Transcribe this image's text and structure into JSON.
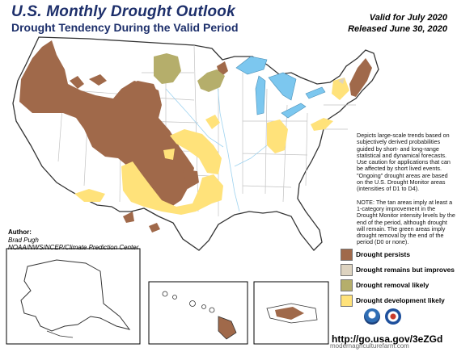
{
  "header": {
    "title": "U.S. Monthly Drought Outlook",
    "subtitle": "Drought Tendency During the Valid Period",
    "valid_line": "Valid for July 2020",
    "released_line": "Released June 30, 2020"
  },
  "notes": {
    "paragraph1": "Depicts large-scale trends based on subjectively derived probabilities guided by short- and long-range statistical and dynamical forecasts. Use caution for applications that can be affected by short lived events. \"Ongoing\" drought areas are based on the U.S. Drought Monitor areas (intensities of D1 to D4).",
    "paragraph2": "NOTE: The tan areas imply at least a 1-category improvement in the Drought Monitor intensity levels by the end of the period, although drought will remain. The green areas imply drought removal by the end of the period (D0 or none)."
  },
  "author": {
    "label": "Author:",
    "name": "Brad Pugh",
    "org": "NOAA/NWS/NCEP/Climate Prediction Center"
  },
  "legend": {
    "items": [
      {
        "label": "Drought persists",
        "color": "#a0694a"
      },
      {
        "label": "Drought remains but improves",
        "color": "#ddd3c0"
      },
      {
        "label": "Drought removal likely",
        "color": "#b5ae6b"
      },
      {
        "label": "Drought development likely",
        "color": "#ffe27a"
      }
    ]
  },
  "footer": {
    "url": "http://go.usa.gov/3eZGd",
    "watermark": "modernagriculturefarm.com"
  },
  "colors": {
    "title": "#1d2f6b",
    "water": "#9fd3f0",
    "lakes": "#7cc7ef",
    "state_line": "#b9b9b9",
    "country_line": "#333333"
  },
  "icons": [
    "noaa-logo-icon",
    "nws-logo-icon"
  ]
}
